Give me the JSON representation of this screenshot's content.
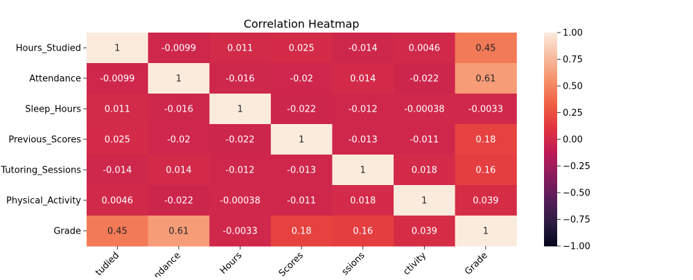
{
  "chart_data": {
    "type": "heatmap",
    "title": "Correlation Heatmap",
    "row_labels": [
      "Hours_Studied",
      "Attendance",
      "Sleep_Hours",
      "Previous_Scores",
      "Tutoring_Sessions",
      "Physical_Activity",
      "Grade"
    ],
    "column_labels_visible": [
      "tudied",
      "ndance",
      "Hours",
      "Scores",
      "ssions",
      "ctivity",
      "Grade"
    ],
    "values": [
      [
        1,
        -0.0099,
        0.011,
        0.025,
        -0.014,
        0.0046,
        0.45
      ],
      [
        -0.0099,
        1,
        -0.016,
        -0.02,
        0.014,
        -0.022,
        0.61
      ],
      [
        0.011,
        -0.016,
        1,
        -0.022,
        -0.012,
        -0.00038,
        -0.0033
      ],
      [
        0.025,
        -0.02,
        -0.022,
        1,
        -0.013,
        -0.011,
        0.18
      ],
      [
        -0.014,
        0.014,
        -0.012,
        -0.013,
        1,
        0.018,
        0.16
      ],
      [
        0.0046,
        -0.022,
        -0.00038,
        -0.011,
        0.018,
        1,
        0.039
      ],
      [
        0.45,
        0.61,
        -0.0033,
        0.18,
        0.16,
        0.039,
        1
      ]
    ],
    "cell_labels": [
      [
        "1",
        "-0.0099",
        "0.011",
        "0.025",
        "-0.014",
        "0.0046",
        "0.45"
      ],
      [
        "-0.0099",
        "1",
        "-0.016",
        "-0.02",
        "0.014",
        "-0.022",
        "0.61"
      ],
      [
        "0.011",
        "-0.016",
        "1",
        "-0.022",
        "-0.012",
        "-0.00038",
        "-0.0033"
      ],
      [
        "0.025",
        "-0.02",
        "-0.022",
        "1",
        "-0.013",
        "-0.011",
        "0.18"
      ],
      [
        "-0.014",
        "0.014",
        "-0.012",
        "-0.013",
        "1",
        "0.018",
        "0.16"
      ],
      [
        "0.0046",
        "-0.022",
        "-0.00038",
        "-0.011",
        "0.018",
        "1",
        "0.039"
      ],
      [
        "0.45",
        "0.61",
        "-0.0033",
        "0.18",
        "0.16",
        "0.039",
        "1"
      ]
    ],
    "colorbar": {
      "vmin": -1.0,
      "vmax": 1.0,
      "ticks": [
        1.0,
        0.75,
        0.5,
        0.25,
        0.0,
        -0.25,
        -0.5,
        -0.75,
        -1.0
      ],
      "tick_labels": [
        "1.00",
        "0.75",
        "0.50",
        "0.25",
        "0.00",
        "−0.25",
        "−0.50",
        "−0.75",
        "−1.00"
      ],
      "colormap": "rocket",
      "colormap_stops": [
        "#03051a",
        "#2c1c43",
        "#591e5a",
        "#8c1c5c",
        "#c01c56",
        "#e1353f",
        "#f06043",
        "#f6916a",
        "#f7bca0",
        "#faebdd"
      ]
    },
    "text_colors": {
      "on_dark": "#ffffff",
      "on_light": "#262626"
    }
  }
}
